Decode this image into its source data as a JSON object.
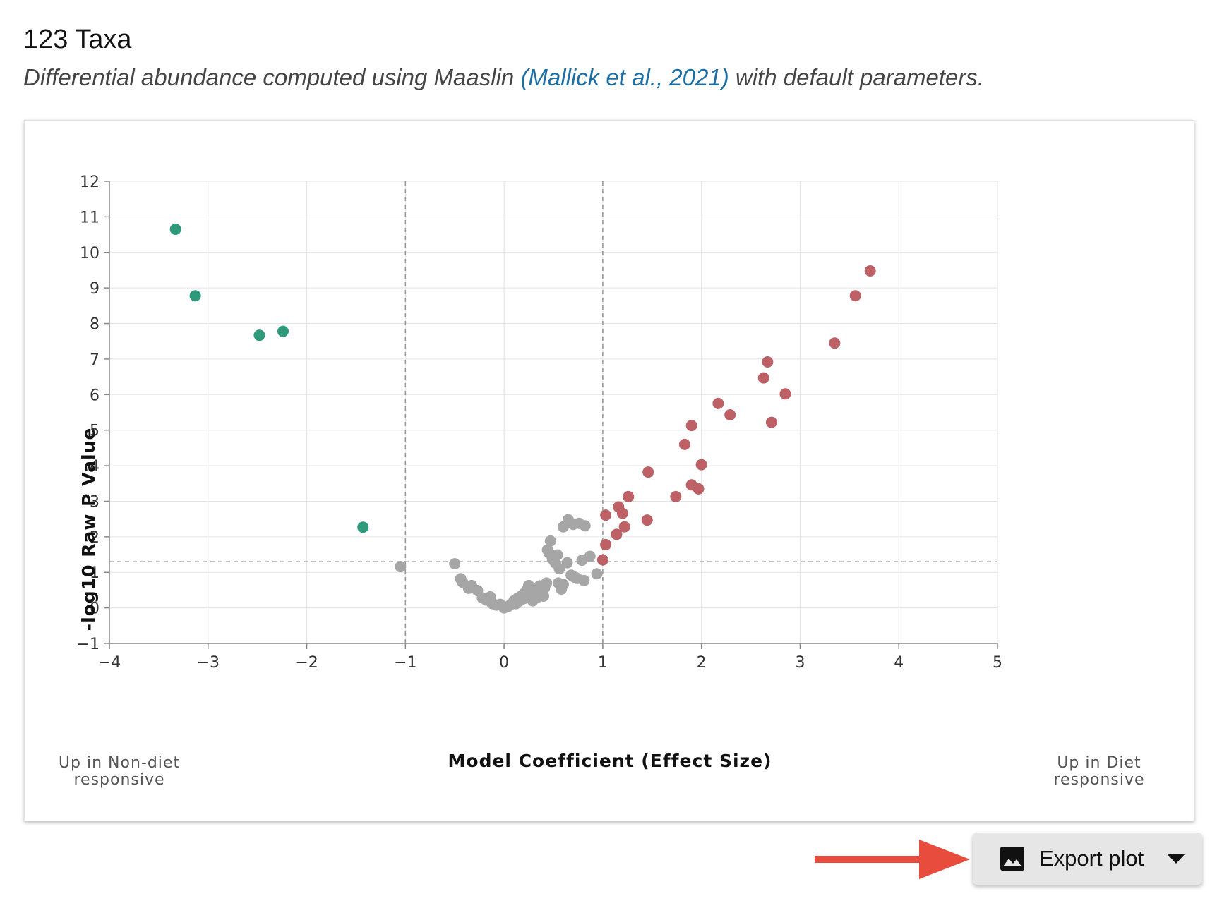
{
  "header": {
    "title": "123 Taxa",
    "subtitle_pre": "Differential abundance computed using Maaslin ",
    "subtitle_cite": "(Mallick et al., 2021)",
    "subtitle_post": " with default parameters."
  },
  "export_button": {
    "label": "Export plot",
    "icon": "image-icon",
    "caret_icon": "caret-down-icon"
  },
  "colors": {
    "down": "#2e9a7b",
    "up": "#bd6166",
    "ns": "#a6a6a6",
    "cite_link": "#1b6fa5",
    "arrow": "#e84c3d"
  },
  "chart_data": {
    "type": "scatter",
    "xlabel": "Model Coefficient (Effect Size)",
    "ylabel": "-log10 Raw P Value",
    "xlim": [
      -4,
      5
    ],
    "ylim": [
      -1,
      12
    ],
    "xticks": [
      "−4",
      "−3",
      "−2",
      "−1",
      "0",
      "1",
      "2",
      "3",
      "4",
      "5"
    ],
    "xtick_values": [
      -4,
      -3,
      -2,
      -1,
      0,
      1,
      2,
      3,
      4,
      5
    ],
    "yticks": [
      "−1",
      "0",
      "1",
      "2",
      "3",
      "4",
      "5",
      "6",
      "7",
      "8",
      "9",
      "10",
      "11",
      "12"
    ],
    "ytick_values": [
      -1,
      0,
      1,
      2,
      3,
      4,
      5,
      6,
      7,
      8,
      9,
      10,
      11,
      12
    ],
    "grid": true,
    "left_annotation": [
      "Up in Non-diet",
      "responsive"
    ],
    "right_annotation": [
      "Up in Diet",
      "responsive"
    ],
    "thresholds": {
      "x": [
        -1,
        1
      ],
      "y": 1.3
    },
    "series": [
      {
        "group": "down",
        "points": [
          [
            -3.33,
            10.65
          ],
          [
            -3.13,
            8.78
          ],
          [
            -2.48,
            7.67
          ],
          [
            -2.24,
            7.78
          ],
          [
            -1.43,
            2.27
          ]
        ]
      },
      {
        "group": "up",
        "points": [
          [
            3.71,
            9.48
          ],
          [
            3.56,
            8.78
          ],
          [
            3.35,
            7.45
          ],
          [
            2.67,
            6.92
          ],
          [
            2.63,
            6.47
          ],
          [
            2.85,
            6.02
          ],
          [
            2.71,
            5.22
          ],
          [
            2.17,
            5.75
          ],
          [
            2.29,
            5.43
          ],
          [
            1.9,
            5.13
          ],
          [
            1.83,
            4.6
          ],
          [
            2.0,
            4.03
          ],
          [
            1.46,
            3.82
          ],
          [
            1.9,
            3.46
          ],
          [
            1.97,
            3.35
          ],
          [
            1.74,
            3.13
          ],
          [
            1.26,
            3.13
          ],
          [
            1.16,
            2.84
          ],
          [
            1.2,
            2.66
          ],
          [
            1.45,
            2.47
          ],
          [
            1.03,
            2.61
          ],
          [
            1.22,
            2.28
          ],
          [
            1.14,
            2.07
          ],
          [
            1.03,
            1.78
          ],
          [
            1.0,
            1.35
          ]
        ]
      },
      {
        "group": "ns",
        "points": [
          [
            -1.05,
            1.16
          ],
          [
            -0.5,
            1.24
          ],
          [
            -0.44,
            0.82
          ],
          [
            -0.42,
            0.72
          ],
          [
            -0.36,
            0.55
          ],
          [
            -0.33,
            0.63
          ],
          [
            -0.27,
            0.49
          ],
          [
            -0.22,
            0.28
          ],
          [
            -0.18,
            0.22
          ],
          [
            -0.14,
            0.31
          ],
          [
            -0.12,
            0.12
          ],
          [
            -0.08,
            0.08
          ],
          [
            -0.04,
            0.1
          ],
          [
            0.0,
            0.0
          ],
          [
            0.04,
            0.04
          ],
          [
            0.07,
            0.1
          ],
          [
            0.1,
            0.2
          ],
          [
            0.12,
            0.12
          ],
          [
            0.14,
            0.28
          ],
          [
            0.16,
            0.2
          ],
          [
            0.18,
            0.35
          ],
          [
            0.2,
            0.26
          ],
          [
            0.21,
            0.42
          ],
          [
            0.23,
            0.5
          ],
          [
            0.25,
            0.63
          ],
          [
            0.26,
            0.32
          ],
          [
            0.28,
            0.45
          ],
          [
            0.29,
            0.2
          ],
          [
            0.3,
            0.55
          ],
          [
            0.32,
            0.4
          ],
          [
            0.33,
            0.28
          ],
          [
            0.35,
            0.5
          ],
          [
            0.36,
            0.62
          ],
          [
            0.38,
            0.45
          ],
          [
            0.4,
            0.33
          ],
          [
            0.41,
            0.56
          ],
          [
            0.43,
            0.7
          ],
          [
            0.44,
            1.63
          ],
          [
            0.46,
            1.53
          ],
          [
            0.47,
            1.88
          ],
          [
            0.49,
            1.38
          ],
          [
            0.52,
            1.26
          ],
          [
            0.54,
            1.49
          ],
          [
            0.56,
            1.1
          ],
          [
            0.58,
            0.53
          ],
          [
            0.6,
            2.28
          ],
          [
            0.64,
            1.27
          ],
          [
            0.65,
            2.48
          ],
          [
            0.7,
            2.35
          ],
          [
            0.74,
            0.83
          ],
          [
            0.76,
            2.38
          ],
          [
            0.79,
            1.34
          ],
          [
            0.81,
            0.77
          ],
          [
            0.82,
            2.31
          ],
          [
            0.87,
            1.45
          ],
          [
            0.94,
            0.96
          ],
          [
            0.68,
            0.92
          ],
          [
            0.71,
            0.87
          ],
          [
            0.6,
            0.66
          ],
          [
            0.55,
            0.7
          ]
        ]
      }
    ]
  }
}
